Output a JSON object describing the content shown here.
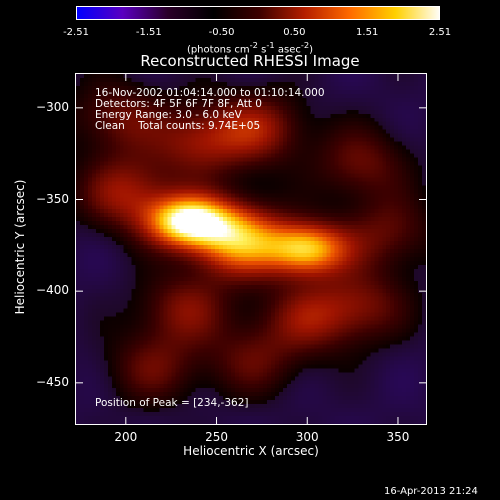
{
  "colorbar": {
    "ticks": [
      "-2.51",
      "-1.51",
      "-0.50",
      "0.50",
      "1.51",
      "2.51"
    ],
    "units_prefix": "(photons cm",
    "units_exp1": "-2",
    "units_mid1": " s",
    "units_exp2": "-1",
    "units_mid2": " asec",
    "units_exp3": "-2",
    "units_suffix": ")",
    "colors": [
      "#0000ff",
      "#5a00c0",
      "#2a0028",
      "#000000",
      "#3c0000",
      "#b41e00",
      "#ff6a00",
      "#ffd000",
      "#ffffff"
    ]
  },
  "chart_data": {
    "type": "heatmap",
    "title": "Reconstructed RHESSI Image",
    "xlabel": "Heliocentric X (arcsec)",
    "ylabel": "Heliocentric Y (arcsec)",
    "xlim": [
      172,
      366
    ],
    "ylim": [
      -473,
      -281
    ],
    "xticks": [
      200,
      250,
      300,
      350
    ],
    "yticks": [
      -300,
      -350,
      -400,
      -450
    ],
    "zlim": [
      -2.51,
      2.51
    ],
    "sources": [
      {
        "x": 234,
        "y": -362,
        "peak": 2.51
      },
      {
        "x": 300,
        "y": -377,
        "peak": 2.1
      },
      {
        "x": 262,
        "y": -372,
        "peak": 1.9
      },
      {
        "x": 200,
        "y": -346,
        "peak": 1.05
      },
      {
        "x": 273,
        "y": -311,
        "peak": 1.0
      },
      {
        "x": 240,
        "y": -318,
        "peak": 0.95
      },
      {
        "x": 232,
        "y": -410,
        "peak": 0.85
      },
      {
        "x": 300,
        "y": -415,
        "peak": 0.85
      },
      {
        "x": 330,
        "y": -408,
        "peak": 0.8
      },
      {
        "x": 195,
        "y": -305,
        "peak": 0.75
      },
      {
        "x": 330,
        "y": -330,
        "peak": 0.75
      },
      {
        "x": 215,
        "y": -442,
        "peak": 0.7
      },
      {
        "x": 270,
        "y": -438,
        "peak": 0.65
      },
      {
        "x": 345,
        "y": -368,
        "peak": 0.7
      }
    ],
    "annotations": {
      "time": "16-Nov-2002 01:04:14.000 to 01:10:14.000",
      "detectors": "Detectors: 4F 5F 6F 7F 8F, Att 0",
      "energy": "Energy Range: 3.0 - 6.0 keV",
      "clean": "Clean    Total counts: 9.74E+05",
      "peak": "Position of Peak = [234,-362]"
    }
  },
  "footer": {
    "timestamp": "16-Apr-2013 21:24"
  }
}
